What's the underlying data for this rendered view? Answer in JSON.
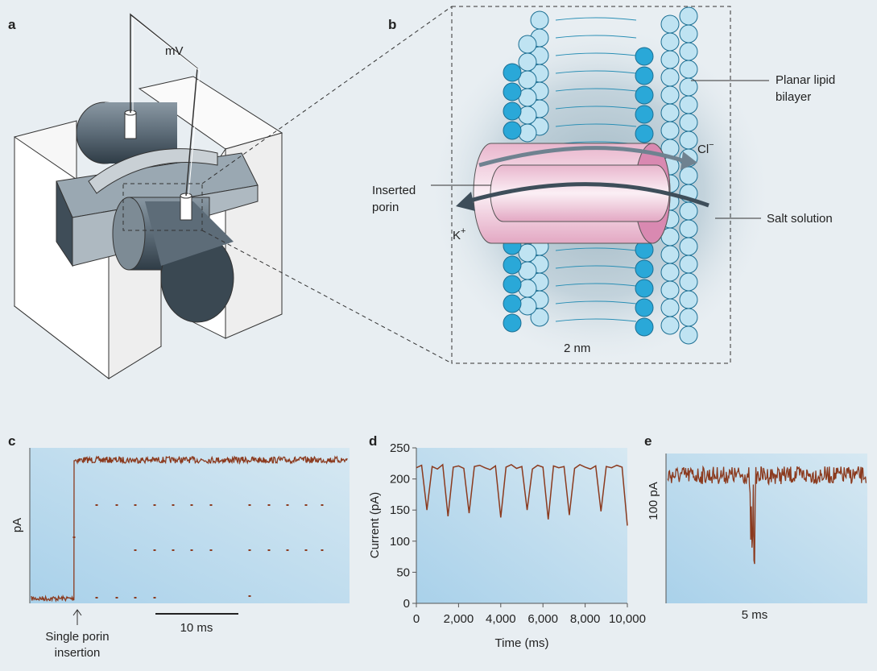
{
  "panels": {
    "a": {
      "label": "a",
      "voltage": "mV"
    },
    "b": {
      "label": "b",
      "bilayer": [
        "Planar lipid",
        "bilayer"
      ],
      "chloride": {
        "base": "Cl",
        "sup": "−"
      },
      "porin": [
        "Inserted",
        "porin"
      ],
      "potassium": {
        "base": "K",
        "sup": "+"
      },
      "salt": "Salt solution",
      "scale": "2 nm"
    },
    "c": {
      "label": "c",
      "ylabel": "pA",
      "event": [
        "Single porin",
        "insertion"
      ],
      "scale": "10 ms"
    },
    "d": {
      "label": "d"
    },
    "e": {
      "label": "e",
      "ylabel": "100 pA",
      "scale": "5 ms"
    }
  },
  "chart_data": {
    "type": "line",
    "xlabel": "Time (ms)",
    "ylabel": "Current (pA)",
    "color": "#8b3a1e",
    "x": [
      0,
      250,
      500,
      750,
      1000,
      1250,
      1500,
      1750,
      2000,
      2250,
      2500,
      2750,
      3000,
      3250,
      3500,
      3750,
      4000,
      4250,
      4500,
      4750,
      5000,
      5250,
      5500,
      5750,
      6000,
      6250,
      6500,
      6750,
      7000,
      7250,
      7500,
      7750,
      8000,
      8250,
      8500,
      8750,
      9000,
      9250,
      9500,
      9750,
      10000
    ],
    "values": [
      218,
      222,
      150,
      220,
      216,
      223,
      140,
      219,
      221,
      217,
      145,
      220,
      222,
      218,
      215,
      221,
      138,
      219,
      223,
      217,
      220,
      150,
      216,
      222,
      219,
      135,
      221,
      218,
      220,
      142,
      217,
      223,
      219,
      216,
      221,
      148,
      220,
      218,
      222,
      219,
      125
    ],
    "xlim": [
      0,
      10000
    ],
    "ylim": [
      0,
      250
    ],
    "xticks": [
      0,
      {
        "value": 2000,
        "label": "2,000"
      },
      {
        "value": 4000,
        "label": "4,000"
      },
      {
        "value": 6000,
        "label": "6,000"
      },
      {
        "value": 8000,
        "label": "8,000"
      },
      {
        "value": 10000,
        "label": "10,000"
      }
    ],
    "yticks": [
      0,
      50,
      100,
      150,
      200,
      250
    ]
  }
}
